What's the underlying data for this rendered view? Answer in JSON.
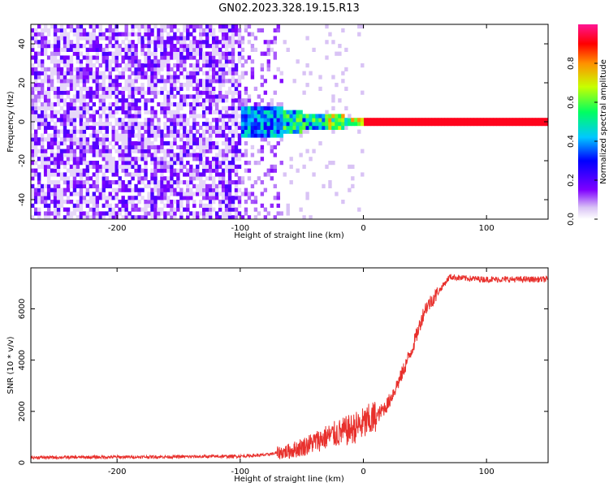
{
  "title": "GN02.2023.328.19.15.R13",
  "colors": {
    "snr_line": "#e8302c",
    "spec_background": "#ffffff",
    "axis": "#000000"
  },
  "chart_data": [
    {
      "type": "heatmap",
      "xlabel": "Height of straight line (km)",
      "ylabel": "Frequency (Hz)",
      "xlim": [
        -270,
        150
      ],
      "ylim": [
        -50,
        50
      ],
      "xticks": [
        -200,
        -100,
        0,
        100
      ],
      "yticks": [
        -40,
        -20,
        0,
        20,
        40
      ],
      "colorbar": {
        "label": "Normalized spectral amplitude",
        "range": [
          0,
          1
        ],
        "ticks": [
          0.0,
          0.2,
          0.4,
          0.6,
          0.8
        ],
        "colormap": "rainbow"
      },
      "regions": [
        {
          "x_range": [
            -270,
            -100
          ],
          "description_level": 0.05
        },
        {
          "x_range": [
            -100,
            0
          ],
          "peak_level": 0.5
        },
        {
          "x_range": [
            0,
            150
          ],
          "peak_level": 0.9,
          "frequency": 0
        }
      ],
      "grid": false
    },
    {
      "type": "line",
      "xlabel": "Height of straight line (km)",
      "ylabel": "SNR (10 * v/v)",
      "xlim": [
        -270,
        150
      ],
      "ylim": [
        0,
        7600
      ],
      "xticks": [
        -200,
        -100,
        0,
        100
      ],
      "yticks": [
        0,
        2000,
        4000,
        6000
      ],
      "grid": false,
      "series": [
        {
          "x": [
            -270,
            -200,
            -150,
            -100,
            -80,
            -60,
            -50,
            -40,
            -30,
            -20,
            -10,
            0,
            10,
            20,
            30,
            40,
            50,
            60,
            70,
            80,
            100,
            120,
            150
          ],
          "values": [
            200,
            220,
            230,
            250,
            300,
            450,
            600,
            800,
            1000,
            1150,
            1300,
            1500,
            1750,
            2300,
            3300,
            4500,
            6000,
            6600,
            7250,
            7200,
            7150,
            7150,
            7150
          ]
        }
      ]
    }
  ]
}
